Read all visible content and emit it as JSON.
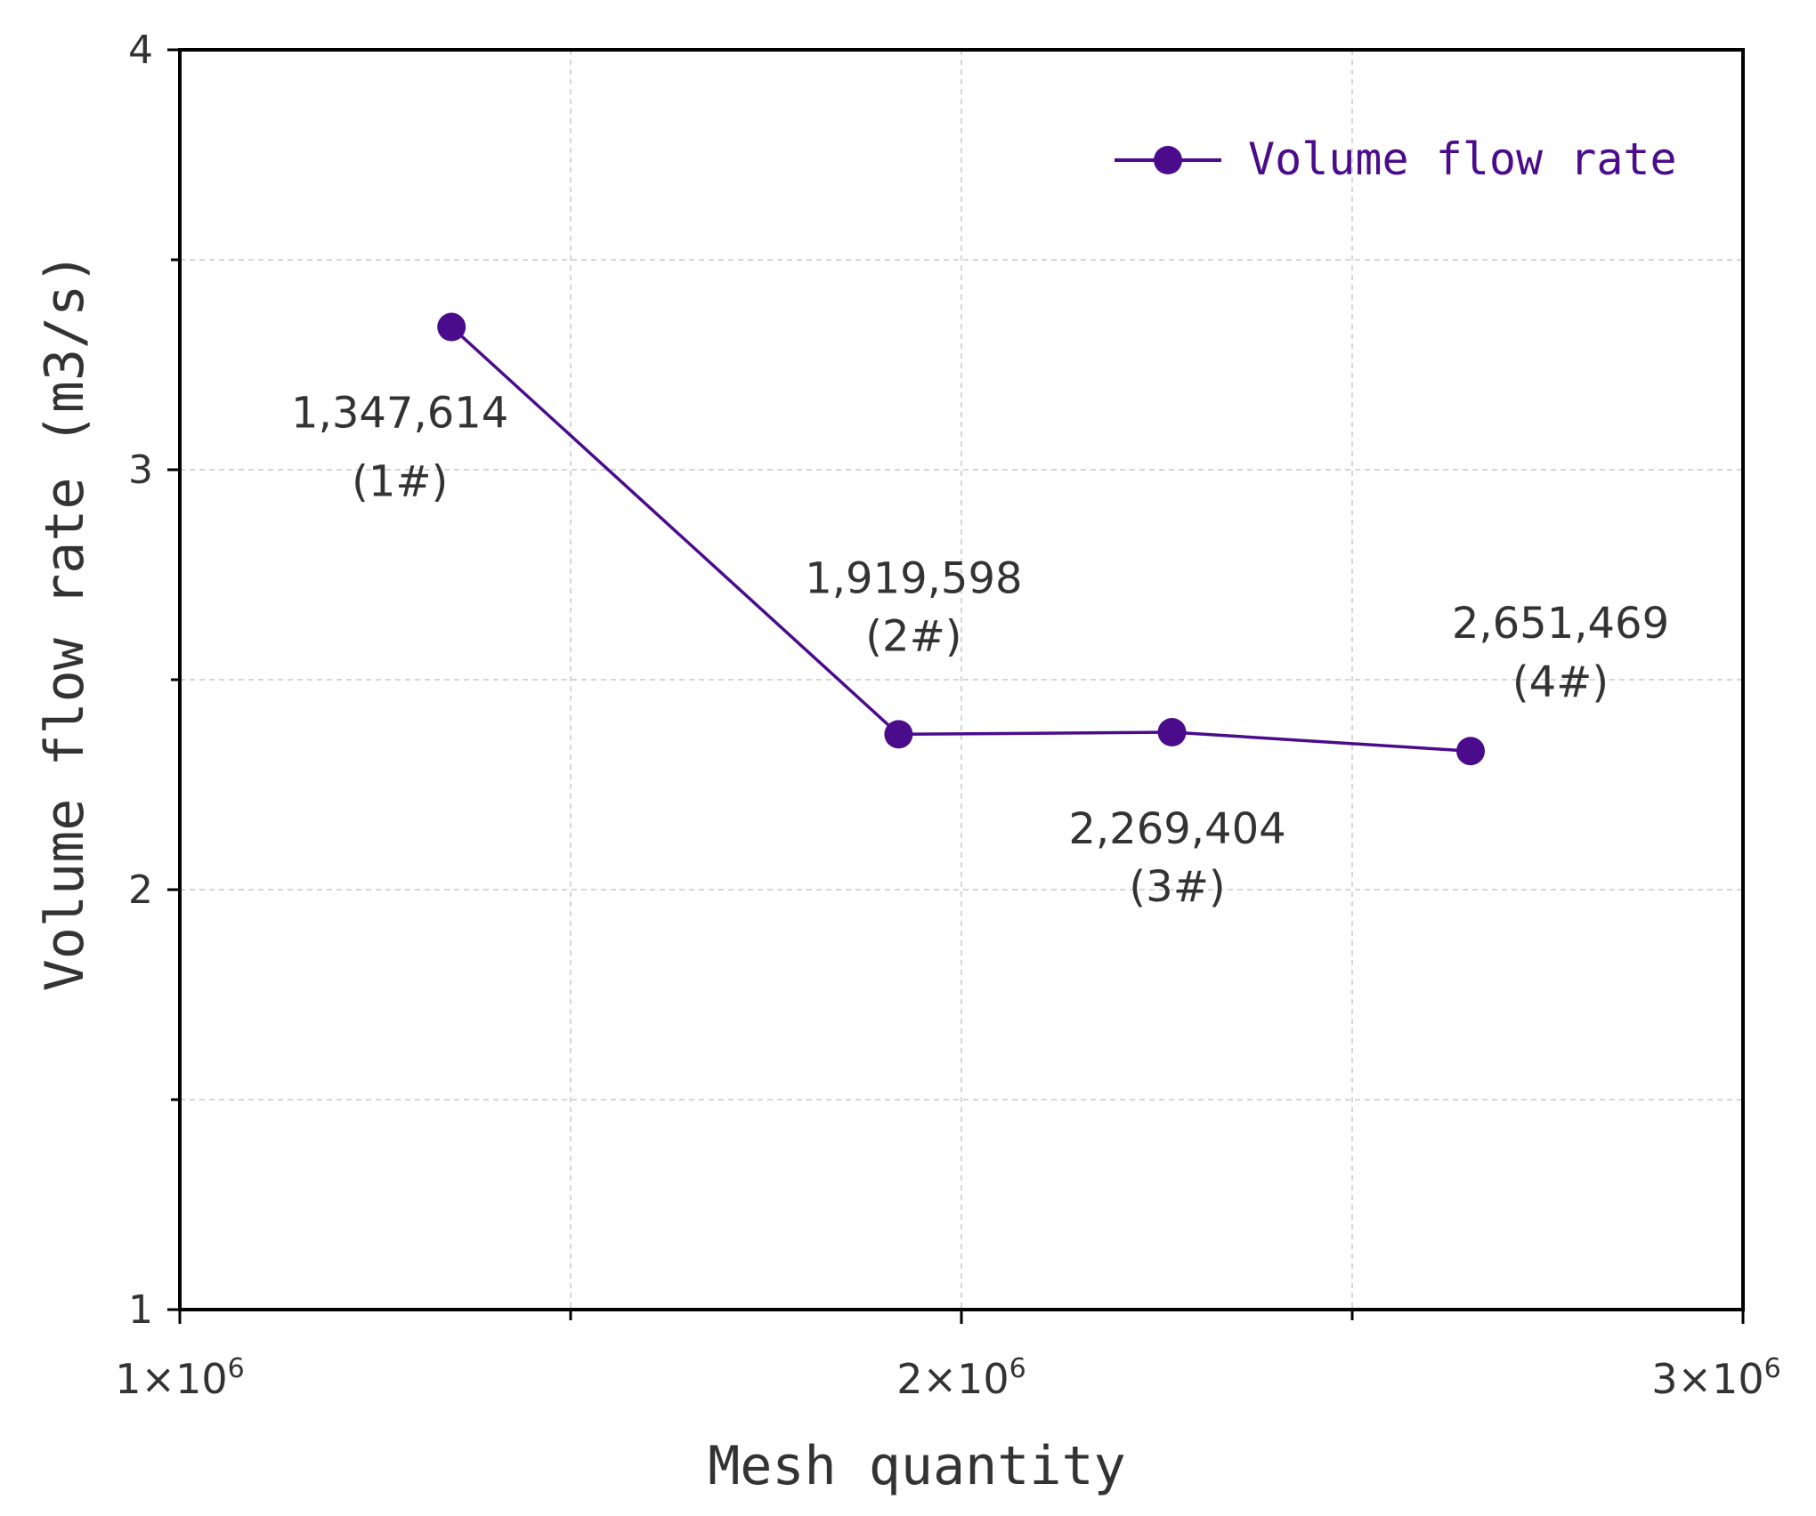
{
  "chart_data": {
    "type": "line",
    "title": "",
    "xlabel": "Mesh quantity",
    "ylabel": "Volume flow rate (m3/s)",
    "xlim": [
      1000000,
      3000000
    ],
    "ylim": [
      1,
      4
    ],
    "x_ticks": [
      {
        "value": 1000000,
        "mantissa": "1×10",
        "exp": "6"
      },
      {
        "value": 2000000,
        "mantissa": "2×10",
        "exp": "6"
      },
      {
        "value": 3000000,
        "mantissa": "3×10",
        "exp": "6"
      }
    ],
    "y_ticks": [
      {
        "value": 1,
        "label": "1"
      },
      {
        "value": 2,
        "label": "2"
      },
      {
        "value": 3,
        "label": "3"
      },
      {
        "value": 4,
        "label": "4"
      }
    ],
    "grid": true,
    "legend_position": "top-right",
    "color": "#4b0c8c",
    "series": [
      {
        "name": "Volume flow rate",
        "points": [
          {
            "x": 1347614,
            "y": 3.34,
            "label": "1,347,614",
            "sublabel": "(1#)"
          },
          {
            "x": 1919598,
            "y": 2.37,
            "label": "1,919,598",
            "sublabel": "(2#)"
          },
          {
            "x": 2269404,
            "y": 2.375,
            "label": "2,269,404",
            "sublabel": "(3#)"
          },
          {
            "x": 2651469,
            "y": 2.33,
            "label": "2,651,469",
            "sublabel": "(4#)"
          }
        ]
      }
    ]
  }
}
